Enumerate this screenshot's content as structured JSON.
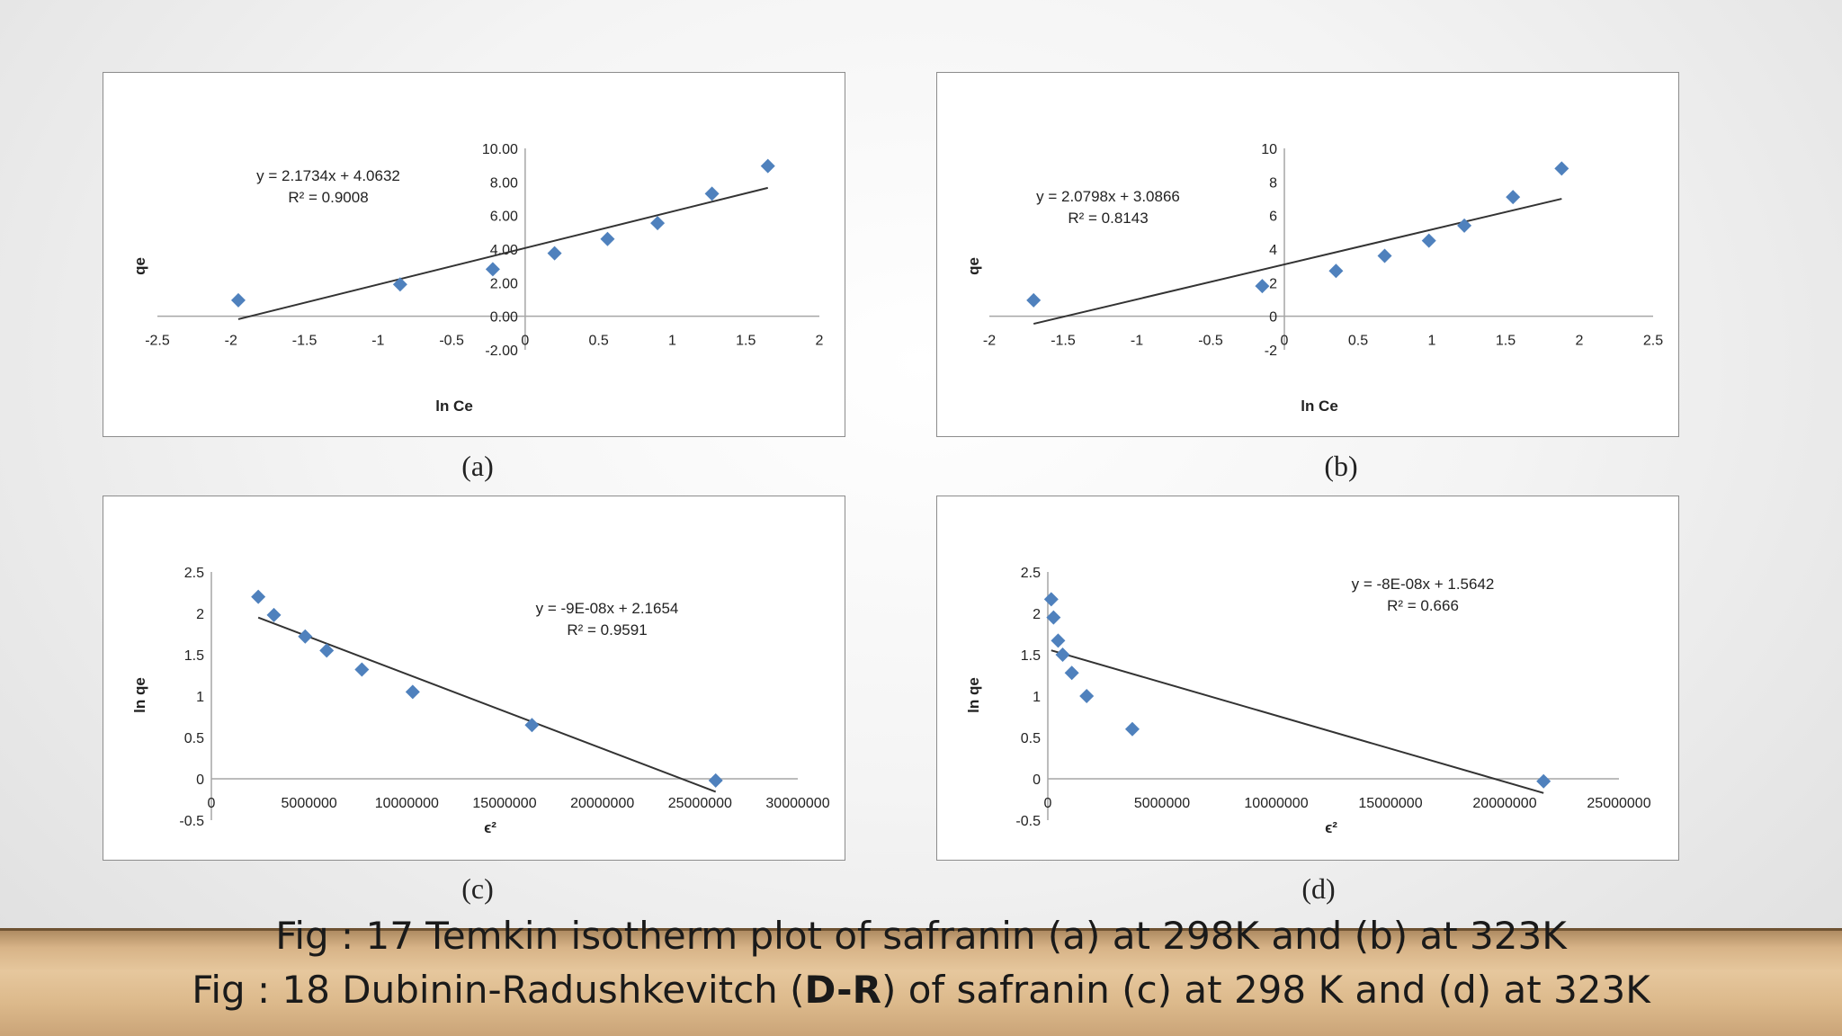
{
  "chart_data": [
    {
      "type": "scatter",
      "id": "a",
      "panel_label": "(a)",
      "xlabel": "ln Ce",
      "ylabel": "qe",
      "xlim": [
        -2.5,
        2
      ],
      "ylim": [
        -2,
        10
      ],
      "xticks": [
        -2.5,
        -2,
        -1.5,
        -1,
        -0.5,
        0,
        0.5,
        1,
        1.5,
        2
      ],
      "xtick_labels": [
        "-2.5",
        "-2",
        "-1.5",
        "-1",
        "-0.5",
        "0",
        "0.5",
        "1",
        "1.5",
        "2"
      ],
      "yticks": [
        -2,
        0,
        2,
        4,
        6,
        8,
        10
      ],
      "ytick_labels": [
        "-2.00",
        "0.00",
        "2.00",
        "4.00",
        "6.00",
        "8.00",
        "10.00"
      ],
      "points": [
        {
          "x": -1.95,
          "y": 0.95
        },
        {
          "x": -0.85,
          "y": 1.9
        },
        {
          "x": -0.22,
          "y": 2.8
        },
        {
          "x": 0.2,
          "y": 3.75
        },
        {
          "x": 0.56,
          "y": 4.6
        },
        {
          "x": 0.9,
          "y": 5.55
        },
        {
          "x": 1.27,
          "y": 7.3
        },
        {
          "x": 1.65,
          "y": 8.95
        }
      ],
      "trendline": {
        "slope": 2.1734,
        "intercept": 4.0632,
        "x_range": [
          -1.95,
          1.65
        ]
      },
      "equation": "y = 2.1734x + 4.0632",
      "r2": "R² = 0.9008"
    },
    {
      "type": "scatter",
      "id": "b",
      "panel_label": "(b)",
      "xlabel": "ln Ce",
      "ylabel": "qe",
      "xlim": [
        -2,
        2.5
      ],
      "ylim": [
        -2,
        10
      ],
      "xticks": [
        -2,
        -1.5,
        -1,
        -0.5,
        0,
        0.5,
        1,
        1.5,
        2,
        2.5
      ],
      "xtick_labels": [
        "-2",
        "-1.5",
        "-1",
        "-0.5",
        "0",
        "0.5",
        "1",
        "1.5",
        "2",
        "2.5"
      ],
      "yticks": [
        -2,
        0,
        2,
        4,
        6,
        8,
        10
      ],
      "ytick_labels": [
        "-2",
        "0",
        "2",
        "4",
        "6",
        "8",
        "10"
      ],
      "points": [
        {
          "x": -1.7,
          "y": 0.95
        },
        {
          "x": -0.15,
          "y": 1.8
        },
        {
          "x": 0.35,
          "y": 2.7
        },
        {
          "x": 0.68,
          "y": 3.6
        },
        {
          "x": 0.98,
          "y": 4.5
        },
        {
          "x": 1.22,
          "y": 5.4
        },
        {
          "x": 1.55,
          "y": 7.1
        },
        {
          "x": 1.88,
          "y": 8.8
        }
      ],
      "trendline": {
        "slope": 2.0798,
        "intercept": 3.0866,
        "x_range": [
          -1.7,
          1.88
        ]
      },
      "equation": "y = 2.0798x + 3.0866",
      "r2": "R² = 0.8143"
    },
    {
      "type": "scatter",
      "id": "c",
      "panel_label": "(c)",
      "xlabel": "ϵ²",
      "ylabel": "ln qe",
      "xlim": [
        0,
        30000000
      ],
      "ylim": [
        -0.5,
        2.5
      ],
      "xticks": [
        0,
        5000000,
        10000000,
        15000000,
        20000000,
        25000000,
        30000000
      ],
      "xtick_labels": [
        "0",
        "5000000",
        "10000000",
        "15000000",
        "20000000",
        "25000000",
        "30000000"
      ],
      "yticks": [
        -0.5,
        0,
        0.5,
        1,
        1.5,
        2,
        2.5
      ],
      "ytick_labels": [
        "-0.5",
        "0",
        "0.5",
        "1",
        "1.5",
        "2",
        "2.5"
      ],
      "points": [
        {
          "x": 2400000,
          "y": 2.2
        },
        {
          "x": 3200000,
          "y": 1.98
        },
        {
          "x": 4800000,
          "y": 1.72
        },
        {
          "x": 5900000,
          "y": 1.55
        },
        {
          "x": 7700000,
          "y": 1.32
        },
        {
          "x": 10300000,
          "y": 1.05
        },
        {
          "x": 16400000,
          "y": 0.65
        },
        {
          "x": 25800000,
          "y": -0.02
        }
      ],
      "trendline": {
        "slope": -9e-08,
        "intercept": 2.1654,
        "x_range": [
          2400000,
          25800000
        ]
      },
      "equation": "y = -9E-08x + 2.1654",
      "r2": "R² = 0.9591"
    },
    {
      "type": "scatter",
      "id": "d",
      "panel_label": "(d)",
      "xlabel": "ϵ²",
      "ylabel": "ln qe",
      "xlim": [
        0,
        25000000
      ],
      "ylim": [
        -0.5,
        2.5
      ],
      "xticks": [
        0,
        5000000,
        10000000,
        15000000,
        20000000,
        25000000
      ],
      "xtick_labels": [
        "0",
        "5000000",
        "10000000",
        "15000000",
        "20000000",
        "25000000"
      ],
      "yticks": [
        -0.5,
        0,
        0.5,
        1,
        1.5,
        2,
        2.5
      ],
      "ytick_labels": [
        "-0.5",
        "0",
        "0.5",
        "1",
        "1.5",
        "2",
        "2.5"
      ],
      "points": [
        {
          "x": 150000,
          "y": 2.17
        },
        {
          "x": 250000,
          "y": 1.95
        },
        {
          "x": 450000,
          "y": 1.67
        },
        {
          "x": 650000,
          "y": 1.5
        },
        {
          "x": 1050000,
          "y": 1.28
        },
        {
          "x": 1700000,
          "y": 1.0
        },
        {
          "x": 3700000,
          "y": 0.6
        },
        {
          "x": 21700000,
          "y": -0.03
        }
      ],
      "trendline": {
        "slope": -8e-08,
        "intercept": 1.5642,
        "x_range": [
          150000,
          21700000
        ]
      },
      "equation": "y = -8E-08x + 1.5642",
      "r2": "R² = 0.666"
    }
  ],
  "captions": {
    "line1": "Fig : 17 Temkin isotherm plot of safranin (a) at 298K and (b) at 323K",
    "line2_before": "Fig : 18 Dubinin-Radushkevitch (",
    "line2_bold": "D-R",
    "line2_after": ") of safranin (c) at 298 K and (d) at 323K"
  },
  "colors": {
    "marker": "#4f81bd",
    "trendline": "#333333",
    "axis": "#a6a6a6",
    "text": "#222222"
  }
}
